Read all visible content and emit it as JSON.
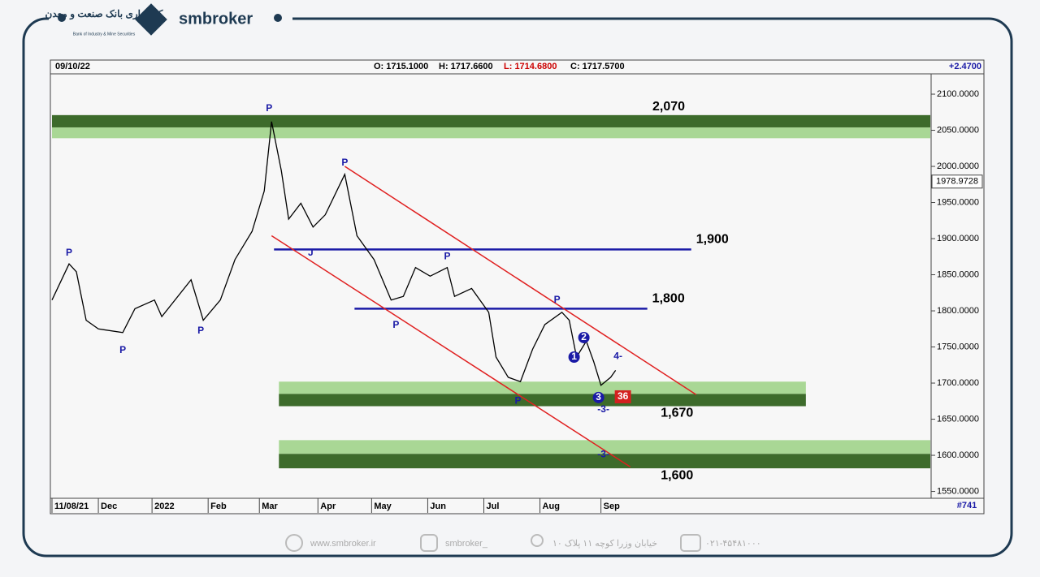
{
  "header": {
    "brand": "smbroker",
    "persian_name": "کارگزاری بانک صنعت و معدن",
    "english_name": "Bank of Industry & Mine Securities"
  },
  "footer": {
    "website": "www.smbroker.ir",
    "instagram": "smbroker_",
    "address": "خیابان وزرا کوچه ۱۱ پلاک ۱۰",
    "phone": "۰۲۱-۴۵۴۸۱۰۰۰"
  },
  "chart_data": {
    "type": "line",
    "date": "09/10/22",
    "open": "O: 1715.1000",
    "high": "H: 1717.6600",
    "low": "L: 1714.6800",
    "close": "C: 1717.5700",
    "change": "+2.4700",
    "bar_count": "#741",
    "x": [
      0,
      7,
      10,
      14,
      19,
      29,
      34,
      42,
      45,
      57,
      62,
      69,
      75,
      82,
      87,
      90,
      94,
      97,
      102,
      107,
      112,
      120,
      125,
      132,
      139,
      144,
      149,
      155,
      162,
      165,
      172,
      179,
      182,
      187,
      192,
      197,
      202,
      209,
      212,
      215,
      219,
      222,
      225,
      229,
      231
    ],
    "series": [
      {
        "name": "price",
        "color": "#000000",
        "values": [
          1815,
          1865,
          1854,
          1787,
          1775,
          1770,
          1803,
          1815,
          1792,
          1843,
          1787,
          1815,
          1871,
          1910,
          1966,
          2062,
          1994,
          1927,
          1949,
          1916,
          1933,
          1989,
          1904,
          1871,
          1815,
          1820,
          1860,
          1848,
          1860,
          1820,
          1831,
          1798,
          1736,
          1708,
          1702,
          1747,
          1781,
          1798,
          1787,
          1736,
          1758,
          1730,
          1697,
          1708,
          1717.57
        ]
      }
    ],
    "xlim": [
      0,
      360
    ],
    "xticks": [
      {
        "value": 0,
        "label": "11/08/21"
      },
      {
        "value": 19,
        "label": "Dec"
      },
      {
        "value": 41,
        "label": "2022"
      },
      {
        "value": 64,
        "label": "Feb"
      },
      {
        "value": 85,
        "label": "Mar"
      },
      {
        "value": 109,
        "label": "Apr"
      },
      {
        "value": 131,
        "label": "May"
      },
      {
        "value": 154,
        "label": "Jun"
      },
      {
        "value": 177,
        "label": "Jul"
      },
      {
        "value": 200,
        "label": "Aug"
      },
      {
        "value": 225,
        "label": "Sep"
      }
    ],
    "ylim": [
      1545,
      2127
    ],
    "yticks": [
      {
        "value": 2100,
        "label": "2100.0000"
      },
      {
        "value": 2050,
        "label": "2050.0000"
      },
      {
        "value": 2000,
        "label": "2000.0000"
      },
      {
        "value": 1950,
        "label": "1950.0000"
      },
      {
        "value": 1900,
        "label": "1900.0000"
      },
      {
        "value": 1850,
        "label": "1850.0000"
      },
      {
        "value": 1800,
        "label": "1800.0000"
      },
      {
        "value": 1750,
        "label": "1750.0000"
      },
      {
        "value": 1700,
        "label": "1700.0000"
      },
      {
        "value": 1650,
        "label": "1650.0000"
      },
      {
        "value": 1600,
        "label": "1600.0000"
      },
      {
        "value": 1550,
        "label": "1550.0000"
      }
    ],
    "last_value": {
      "value": 1978.9728,
      "label": "1978.9728"
    },
    "zones": [
      {
        "label": "2,070",
        "dark": [
          2054,
          2071
        ],
        "light": [
          2039,
          2054
        ],
        "x": [
          0,
          360
        ]
      },
      {
        "label": "1,670",
        "light": [
          1685,
          1702
        ],
        "dark": [
          1668,
          1685
        ],
        "x": [
          93,
          309
        ]
      },
      {
        "label": "1,600",
        "light": [
          1602,
          1621
        ],
        "dark": [
          1582,
          1602
        ],
        "x": [
          93,
          360
        ]
      }
    ],
    "levels": [
      {
        "label": "1,900",
        "value": 1885,
        "x": [
          91,
          262
        ],
        "color": "#1a1aa6"
      },
      {
        "label": "1,800",
        "value": 1803,
        "x": [
          124,
          244
        ],
        "color": "#1a1aa6"
      }
    ],
    "channel": {
      "color": "#e02020",
      "upper": {
        "x": [
          120,
          264
        ],
        "y": [
          2000,
          1684
        ]
      },
      "lower": {
        "x": [
          90,
          237
        ],
        "y": [
          1904,
          1584
        ]
      }
    },
    "annotations": [
      {
        "text": "P",
        "x": 7,
        "y": 1880
      },
      {
        "text": "P",
        "x": 29,
        "y": 1745
      },
      {
        "text": "P",
        "x": 61,
        "y": 1772
      },
      {
        "text": "P",
        "x": 89,
        "y": 2080
      },
      {
        "text": "P",
        "x": 120,
        "y": 2005
      },
      {
        "text": "P",
        "x": 141,
        "y": 1780
      },
      {
        "text": "P",
        "x": 162,
        "y": 1875
      },
      {
        "text": "P",
        "x": 191,
        "y": 1675
      },
      {
        "text": "P",
        "x": 207,
        "y": 1815
      },
      {
        "text": "J",
        "x": 106,
        "y": 1880
      },
      {
        "text": "1",
        "x": 214,
        "y": 1736
      },
      {
        "text": "2",
        "x": 218,
        "y": 1763
      },
      {
        "text": "3",
        "x": 224,
        "y": 1680
      },
      {
        "text": "-3-",
        "x": 226,
        "y": 1663
      },
      {
        "text": "-3-",
        "x": 226,
        "y": 1601
      },
      {
        "text": "4-",
        "x": 232,
        "y": 1737
      },
      {
        "text": "36",
        "x": 234,
        "y": 1681
      }
    ]
  }
}
